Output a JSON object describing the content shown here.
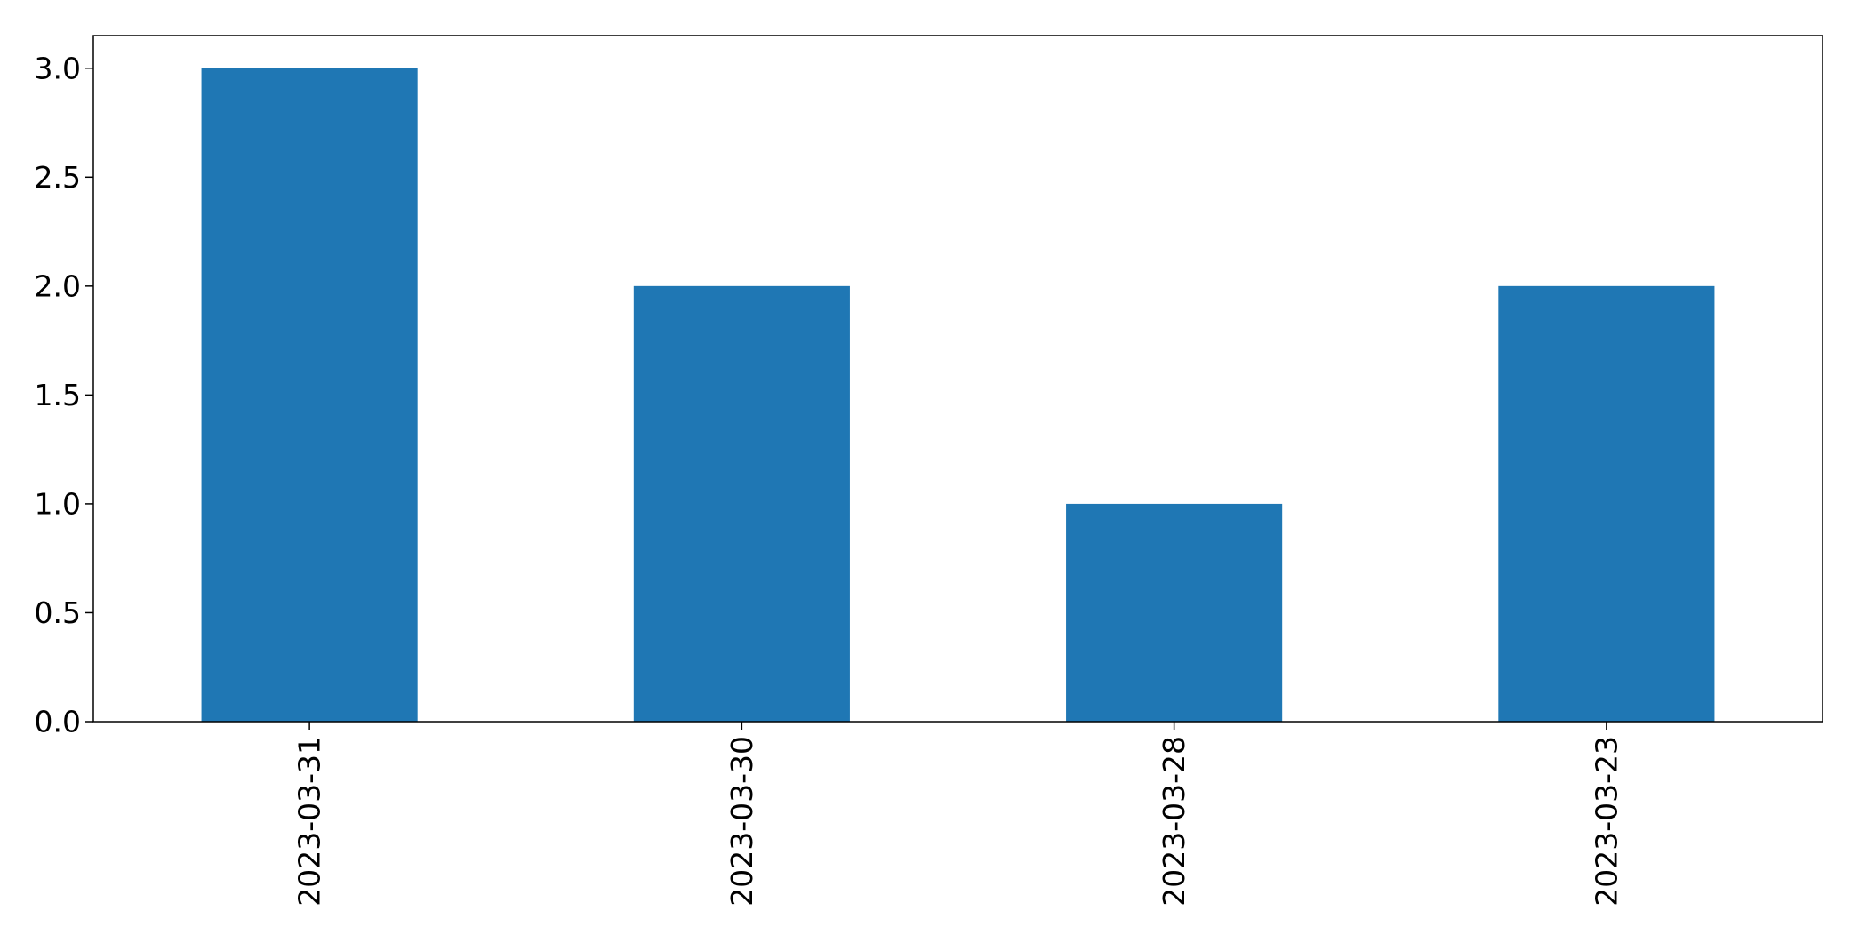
{
  "chart_data": {
    "type": "bar",
    "categories": [
      "2023-03-31",
      "2023-03-30",
      "2023-03-28",
      "2023-03-23"
    ],
    "values": [
      3,
      2,
      1,
      2
    ],
    "title": "",
    "xlabel": "",
    "ylabel": "",
    "ylim": [
      0,
      3.15
    ],
    "yticks": [
      "0.0",
      "0.5",
      "1.0",
      "1.5",
      "2.0",
      "2.5",
      "3.0"
    ],
    "grid": false,
    "legend": "none",
    "bar_color": "#1f77b4",
    "x_tick_rotation": "vertical"
  }
}
